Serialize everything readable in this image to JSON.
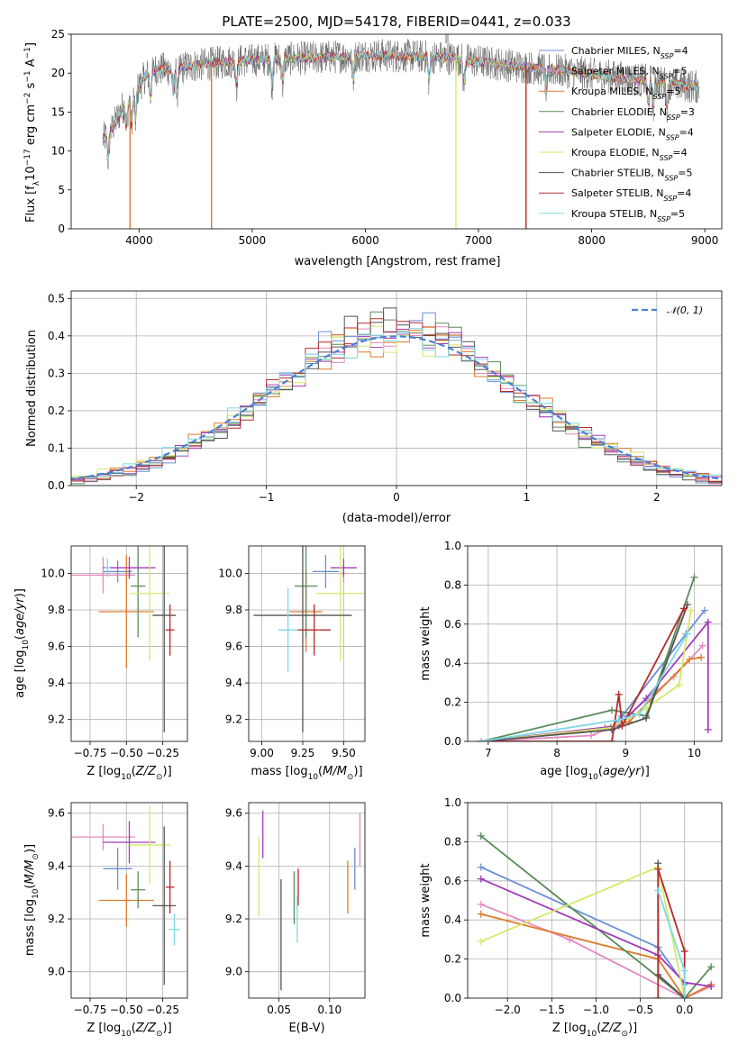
{
  "figure": {
    "title": "PLATE=2500, MJD=54178, FIBERID=0441, z=0.033",
    "colors": [
      "#6a8fd6",
      "#e58ac0",
      "#e07b2a",
      "#5a8a5a",
      "#a23bb8",
      "#d6e86a",
      "#555555",
      "#b52a2a",
      "#7fd8e6"
    ]
  },
  "chart_data": [
    {
      "id": "spectrum",
      "type": "line",
      "title": "PLATE=2500, MJD=54178, FIBERID=0441, z=0.033",
      "xlabel": "wavelength [Angstrom, rest frame]",
      "ylabel": "Flux [fλ10⁻¹⁷ erg cm⁻² s⁻¹ A⁻¹]",
      "xlim": [
        3400,
        9150
      ],
      "ylim": [
        0,
        25
      ],
      "xticks": [
        4000,
        5000,
        6000,
        7000,
        8000,
        9000
      ],
      "yticks": [
        0,
        5,
        10,
        15,
        20,
        25
      ],
      "legend_position": "upper right",
      "series": [
        {
          "name": "Chabrier MILES, N_SSP=4"
        },
        {
          "name": "Salpeter MILES, N_SSP=5"
        },
        {
          "name": "Kroupa MILES, N_SSP=5"
        },
        {
          "name": "Chabrier ELODIE, N_SSP=3"
        },
        {
          "name": "Salpeter ELODIE, N_SSP=4"
        },
        {
          "name": "Kroupa ELODIE, N_SSP=4"
        },
        {
          "name": "Chabrier STELIB, N_SSP=5"
        },
        {
          "name": "Salpeter STELIB, N_SSP=4"
        },
        {
          "name": "Kroupa STELIB, N_SSP=5"
        }
      ],
      "continuum": {
        "x": [
          3680,
          3750,
          3850,
          3950,
          4050,
          4150,
          4300,
          4500,
          4800,
          5200,
          5600,
          6000,
          6400,
          6700,
          7000,
          7400,
          7800,
          8200,
          8600,
          8950
        ],
        "y": [
          11.5,
          12.5,
          15.5,
          17,
          19.5,
          20.5,
          20.5,
          21,
          21.5,
          21.8,
          22,
          22.3,
          22.2,
          22,
          21.5,
          20.8,
          20.2,
          19.5,
          18.8,
          18.2
        ]
      }
    },
    {
      "id": "residuals",
      "type": "bar",
      "xlabel": "(data-model)/error",
      "ylabel": "Normed distribution",
      "xlim": [
        -2.5,
        2.5
      ],
      "ylim": [
        0,
        0.52
      ],
      "xticks": [
        -2,
        -1,
        0,
        1,
        2
      ],
      "yticks": [
        0.0,
        0.1,
        0.2,
        0.3,
        0.4,
        0.5
      ],
      "legend": "𝒩(0, 1)",
      "legend_position": "upper right",
      "bin_width": 0.1
    },
    {
      "id": "age-vs-Z",
      "type": "scatter",
      "xlabel": "Z [log₁₀(Z/Z⊙)]",
      "ylabel": "age  [log₁₀(age/yr)]",
      "xlim": [
        -0.88,
        -0.08
      ],
      "ylim": [
        9.08,
        10.15
      ],
      "xticks": [
        -0.75,
        -0.5,
        -0.25
      ],
      "yticks": [
        9.2,
        9.4,
        9.6,
        9.8,
        10.0
      ],
      "points": [
        {
          "x": -0.56,
          "y": 10.01,
          "xerr": 0.1,
          "yerr": 0.06
        },
        {
          "x": -0.66,
          "y": 9.99,
          "xerr": 0.22,
          "yerr": 0.1
        },
        {
          "x": -0.5,
          "y": 9.79,
          "xerr": 0.19,
          "yerr": 0.31
        },
        {
          "x": -0.42,
          "y": 9.93,
          "xerr": 0.05,
          "yerr": 0.28
        },
        {
          "x": -0.48,
          "y": 10.03,
          "xerr": 0.18,
          "yerr": 0.06
        },
        {
          "x": -0.34,
          "y": 9.89,
          "xerr": 0.14,
          "yerr": 0.37
        },
        {
          "x": -0.24,
          "y": 9.77,
          "xerr": 0.08,
          "yerr": 0.64
        },
        {
          "x": -0.2,
          "y": 9.69,
          "xerr": 0.03,
          "yerr": 0.14
        },
        {
          "x": -0.63,
          "y": 10.03,
          "xerr": 0.02,
          "yerr": 0.05
        }
      ]
    },
    {
      "id": "age-vs-mass",
      "type": "scatter",
      "xlabel": "mass [log₁₀(M/M⊙)]",
      "ylabel": "",
      "xlim": [
        8.92,
        9.63
      ],
      "ylim": [
        9.08,
        10.15
      ],
      "xticks": [
        9.0,
        9.25,
        9.5
      ],
      "yticks": [
        9.2,
        9.4,
        9.6,
        9.8,
        10.0
      ],
      "points": [
        {
          "x": 9.39,
          "y": 10.01,
          "xerr": 0.08,
          "yerr": 0.09
        },
        {
          "x": 9.5,
          "y": 10.0,
          "xerr": 0.02,
          "yerr": 0.05
        },
        {
          "x": 9.27,
          "y": 9.79,
          "xerr": 0.1,
          "yerr": 0.22
        },
        {
          "x": 9.27,
          "y": 9.93,
          "xerr": 0.07,
          "yerr": 0.28
        },
        {
          "x": 9.5,
          "y": 10.03,
          "xerr": 0.08,
          "yerr": 0.05
        },
        {
          "x": 9.48,
          "y": 9.89,
          "xerr": 0.15,
          "yerr": 0.37
        },
        {
          "x": 9.25,
          "y": 9.77,
          "xerr": 0.3,
          "yerr": 0.64
        },
        {
          "x": 9.32,
          "y": 9.69,
          "xerr": 0.1,
          "yerr": 0.14
        },
        {
          "x": 9.16,
          "y": 9.69,
          "xerr": 0.06,
          "yerr": 0.23
        }
      ]
    },
    {
      "id": "mw-vs-age",
      "type": "line",
      "xlabel": "age  [log₁₀(age/yr)]",
      "ylabel": "mass weight",
      "xlim": [
        6.7,
        10.4
      ],
      "ylim": [
        0,
        1.0
      ],
      "xticks": [
        7,
        8,
        9,
        10
      ],
      "yticks": [
        0.0,
        0.2,
        0.4,
        0.6,
        0.8,
        1.0
      ],
      "series": [
        {
          "x": [
            6.9,
            8.78,
            8.95,
            9.88,
            10.15
          ],
          "y": [
            0.0,
            0.07,
            0.13,
            0.55,
            0.67
          ]
        },
        {
          "x": [
            6.9,
            8.5,
            8.85,
            9.7,
            10.12
          ],
          "y": [
            0.0,
            0.03,
            0.08,
            0.33,
            0.49
          ]
        },
        {
          "x": [
            6.9,
            8.7,
            9.05,
            9.93,
            10.1
          ],
          "y": [
            0.0,
            0.07,
            0.1,
            0.42,
            0.43
          ]
        },
        {
          "x": [
            6.9,
            8.8,
            9.3,
            10.0
          ],
          "y": [
            0.0,
            0.16,
            0.13,
            0.84
          ]
        },
        {
          "x": [
            6.9,
            8.9,
            9.3,
            10.2,
            10.2
          ],
          "y": [
            0.0,
            0.08,
            0.22,
            0.61,
            0.06
          ]
        },
        {
          "x": [
            6.9,
            8.8,
            9.3,
            9.78,
            9.95
          ],
          "y": [
            0.0,
            0.07,
            0.17,
            0.29,
            0.67
          ]
        },
        {
          "x": [
            6.9,
            8.8,
            9.3,
            9.9
          ],
          "y": [
            0.0,
            0.06,
            0.12,
            0.7
          ]
        },
        {
          "x": [
            6.9,
            8.8,
            8.9,
            8.95,
            9.85
          ],
          "y": [
            0.0,
            0.0,
            0.24,
            0.08,
            0.68
          ]
        },
        {
          "x": [
            6.9,
            8.9,
            9.2,
            9.9
          ],
          "y": [
            0.0,
            0.11,
            0.14,
            0.55
          ]
        }
      ]
    },
    {
      "id": "mass-vs-Z",
      "type": "scatter",
      "xlabel": "Z [log₁₀(Z/Z⊙)]",
      "ylabel": "mass [log₁₀(M/M⊙)]",
      "xlim": [
        -0.88,
        -0.08
      ],
      "ylim": [
        8.9,
        9.64
      ],
      "xticks": [
        -0.75,
        -0.5,
        -0.25
      ],
      "yticks": [
        9.0,
        9.2,
        9.4,
        9.6
      ],
      "points": [
        {
          "x": -0.56,
          "y": 9.39,
          "xerr": 0.1,
          "yerr": 0.08
        },
        {
          "x": -0.66,
          "y": 9.51,
          "xerr": 0.22,
          "yerr": 0.05
        },
        {
          "x": -0.5,
          "y": 9.27,
          "xerr": 0.19,
          "yerr": 0.1
        },
        {
          "x": -0.42,
          "y": 9.31,
          "xerr": 0.05,
          "yerr": 0.07
        },
        {
          "x": -0.48,
          "y": 9.49,
          "xerr": 0.18,
          "yerr": 0.08
        },
        {
          "x": -0.34,
          "y": 9.48,
          "xerr": 0.14,
          "yerr": 0.15
        },
        {
          "x": -0.24,
          "y": 9.25,
          "xerr": 0.08,
          "yerr": 0.3
        },
        {
          "x": -0.2,
          "y": 9.32,
          "xerr": 0.03,
          "yerr": 0.1
        },
        {
          "x": -0.17,
          "y": 9.16,
          "xerr": 0.04,
          "yerr": 0.06
        }
      ]
    },
    {
      "id": "mass-vs-ebv",
      "type": "scatter",
      "xlabel": "E(B-V)",
      "ylabel": "",
      "xlim": [
        0.02,
        0.135
      ],
      "ylim": [
        8.9,
        9.64
      ],
      "xticks": [
        0.05,
        0.1
      ],
      "yticks": [
        9.0,
        9.2,
        9.4,
        9.6
      ],
      "points": [
        {
          "x": 0.125,
          "y": 9.39,
          "xerr": 0,
          "yerr": 0.08
        },
        {
          "x": 0.13,
          "y": 9.5,
          "xerr": 0,
          "yerr": 0.1
        },
        {
          "x": 0.118,
          "y": 9.32,
          "xerr": 0,
          "yerr": 0.1
        },
        {
          "x": 0.065,
          "y": 9.28,
          "xerr": 0,
          "yerr": 0.1
        },
        {
          "x": 0.034,
          "y": 9.52,
          "xerr": 0,
          "yerr": 0.09
        },
        {
          "x": 0.03,
          "y": 9.36,
          "xerr": 0,
          "yerr": 0.15
        },
        {
          "x": 0.052,
          "y": 9.14,
          "xerr": 0,
          "yerr": 0.21
        },
        {
          "x": 0.069,
          "y": 9.32,
          "xerr": 0,
          "yerr": 0.07
        },
        {
          "x": 0.068,
          "y": 9.2,
          "xerr": 0,
          "yerr": 0.09
        }
      ]
    },
    {
      "id": "mw-vs-Z",
      "type": "line",
      "xlabel": "Z [log₁₀(Z/Z⊙)]",
      "ylabel": "mass weight",
      "xlim": [
        -2.45,
        0.42
      ],
      "ylim": [
        0,
        1.0
      ],
      "xticks": [
        -2.0,
        -1.5,
        -1.0,
        -0.5,
        0.0
      ],
      "yticks": [
        0.0,
        0.2,
        0.4,
        0.6,
        0.8,
        1.0
      ],
      "series": [
        {
          "x": [
            -2.3,
            -0.3,
            0.0
          ],
          "y": [
            0.67,
            0.26,
            0.07
          ]
        },
        {
          "x": [
            -2.3,
            -1.3,
            0.0,
            0.3
          ],
          "y": [
            0.48,
            0.3,
            0.0,
            0.06
          ]
        },
        {
          "x": [
            -2.3,
            -0.3,
            0.0,
            0.3
          ],
          "y": [
            0.43,
            0.2,
            0.0,
            0.07
          ]
        },
        {
          "x": [
            -2.3,
            0.0,
            0.3
          ],
          "y": [
            0.83,
            0.0,
            0.16
          ]
        },
        {
          "x": [
            -2.3,
            -0.3,
            0.0,
            0.3
          ],
          "y": [
            0.61,
            0.22,
            0.08,
            0.06
          ]
        },
        {
          "x": [
            -2.3,
            -0.3,
            0.0
          ],
          "y": [
            0.29,
            0.67,
            0.0
          ]
        },
        {
          "x": [
            -0.3,
            -0.3,
            0.0
          ],
          "y": [
            0.69,
            0.12,
            0.0
          ]
        },
        {
          "x": [
            -0.3,
            -0.3,
            0.0,
            0.0
          ],
          "y": [
            0.0,
            0.66,
            0.24,
            0.0
          ]
        },
        {
          "x": [
            -0.3,
            0.0,
            0.0
          ],
          "y": [
            0.55,
            0.14,
            0.0
          ]
        }
      ]
    }
  ]
}
